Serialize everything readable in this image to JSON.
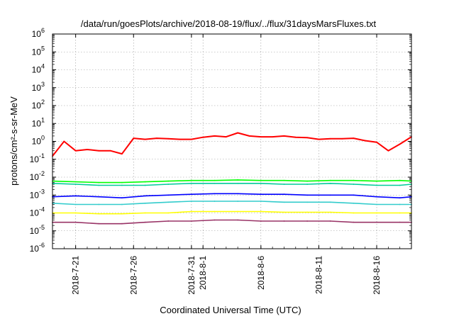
{
  "chart_data": {
    "type": "line",
    "title": "/data/run/goesPlots/archive/2018-08-19/flux/../flux/31daysMarsFluxes.txt",
    "xlabel": "Coordinated Universal Time (UTC)",
    "ylabel": "protons/cm²-s-sr-MeV",
    "yscale": "log",
    "ylim": [
      1e-06,
      1000000.0
    ],
    "xlim": [
      "2018-07-19",
      "2018-08-19"
    ],
    "grid": true,
    "y_ticks": [
      {
        "base": "10",
        "exp": "-6"
      },
      {
        "base": "10",
        "exp": "-5"
      },
      {
        "base": "10",
        "exp": "-4"
      },
      {
        "base": "10",
        "exp": "-3"
      },
      {
        "base": "10",
        "exp": "-2"
      },
      {
        "base": "10",
        "exp": "-1"
      },
      {
        "base": "10",
        "exp": "0"
      },
      {
        "base": "10",
        "exp": "1"
      },
      {
        "base": "10",
        "exp": "2"
      },
      {
        "base": "10",
        "exp": "3"
      },
      {
        "base": "10",
        "exp": "4"
      },
      {
        "base": "10",
        "exp": "5"
      },
      {
        "base": "10",
        "exp": "6"
      }
    ],
    "x_ticks": [
      {
        "date": "2018-07-21",
        "label": "2018-7-21"
      },
      {
        "date": "2018-07-26",
        "label": "2018-7-26"
      },
      {
        "date": "2018-07-31",
        "label": "2018-7-31"
      },
      {
        "date": "2018-08-01",
        "label": "2018-8-1"
      },
      {
        "date": "2018-08-06",
        "label": "2018-8-6"
      },
      {
        "date": "2018-08-11",
        "label": "2018-8-11"
      },
      {
        "date": "2018-08-16",
        "label": "2018-8-16"
      }
    ],
    "series": [
      {
        "color": "#ff0000",
        "x": [
          "2018-07-19",
          "2018-07-20",
          "2018-07-21",
          "2018-07-22",
          "2018-07-23",
          "2018-07-24",
          "2018-07-25",
          "2018-07-26",
          "2018-07-27",
          "2018-07-28",
          "2018-07-29",
          "2018-07-30",
          "2018-07-31",
          "2018-08-01",
          "2018-08-02",
          "2018-08-03",
          "2018-08-04",
          "2018-08-05",
          "2018-08-06",
          "2018-08-07",
          "2018-08-08",
          "2018-08-09",
          "2018-08-10",
          "2018-08-11",
          "2018-08-12",
          "2018-08-13",
          "2018-08-14",
          "2018-08-15",
          "2018-08-16",
          "2018-08-17",
          "2018-08-18",
          "2018-08-19"
        ],
        "values": [
          0.15,
          1.0,
          0.3,
          0.35,
          0.3,
          0.3,
          0.2,
          1.5,
          1.3,
          1.5,
          1.4,
          1.3,
          1.3,
          1.7,
          2.0,
          1.8,
          3.0,
          2.0,
          1.8,
          1.8,
          2.0,
          1.7,
          1.6,
          1.3,
          1.4,
          1.4,
          1.5,
          1.1,
          0.9,
          0.3,
          0.7,
          1.8
        ]
      },
      {
        "color": "#00ff00",
        "x": [
          "2018-07-19",
          "2018-07-21",
          "2018-07-23",
          "2018-07-25",
          "2018-07-27",
          "2018-07-29",
          "2018-07-31",
          "2018-08-02",
          "2018-08-04",
          "2018-08-06",
          "2018-08-08",
          "2018-08-10",
          "2018-08-12",
          "2018-08-14",
          "2018-08-16",
          "2018-08-18",
          "2018-08-19"
        ],
        "values": [
          0.006,
          0.0055,
          0.005,
          0.005,
          0.0055,
          0.006,
          0.0065,
          0.0065,
          0.007,
          0.0065,
          0.0065,
          0.006,
          0.0065,
          0.0065,
          0.006,
          0.0065,
          0.006
        ]
      },
      {
        "color": "#0000ff",
        "x": [
          "2018-07-19",
          "2018-07-21",
          "2018-07-23",
          "2018-07-25",
          "2018-07-27",
          "2018-07-29",
          "2018-07-31",
          "2018-08-02",
          "2018-08-04",
          "2018-08-06",
          "2018-08-08",
          "2018-08-10",
          "2018-08-12",
          "2018-08-14",
          "2018-08-16",
          "2018-08-18",
          "2018-08-19"
        ],
        "values": [
          0.0008,
          0.0009,
          0.0008,
          0.0007,
          0.0009,
          0.001,
          0.0011,
          0.0012,
          0.0012,
          0.0011,
          0.0011,
          0.001,
          0.001,
          0.001,
          0.0008,
          0.0007,
          0.0008
        ]
      },
      {
        "color": "#00cc99",
        "x": [
          "2018-07-19",
          "2018-07-21",
          "2018-07-23",
          "2018-07-25",
          "2018-07-27",
          "2018-07-29",
          "2018-07-31",
          "2018-08-02",
          "2018-08-04",
          "2018-08-06",
          "2018-08-08",
          "2018-08-10",
          "2018-08-12",
          "2018-08-14",
          "2018-08-16",
          "2018-08-18",
          "2018-08-19"
        ],
        "values": [
          0.0045,
          0.004,
          0.0035,
          0.0035,
          0.0035,
          0.004,
          0.0045,
          0.0045,
          0.0045,
          0.0045,
          0.004,
          0.004,
          0.0045,
          0.004,
          0.0035,
          0.0035,
          0.004
        ]
      },
      {
        "color": "#33cccc",
        "x": [
          "2018-07-19",
          "2018-07-21",
          "2018-07-23",
          "2018-07-25",
          "2018-07-27",
          "2018-07-29",
          "2018-07-31",
          "2018-08-02",
          "2018-08-04",
          "2018-08-06",
          "2018-08-08",
          "2018-08-10",
          "2018-08-12",
          "2018-08-14",
          "2018-08-16",
          "2018-08-18",
          "2018-08-19"
        ],
        "values": [
          0.00035,
          0.0003,
          0.0003,
          0.0003,
          0.00035,
          0.0004,
          0.00045,
          0.00045,
          0.00045,
          0.00045,
          0.0004,
          0.0004,
          0.0004,
          0.00035,
          0.0003,
          0.0003,
          0.0003
        ]
      },
      {
        "color": "#ffff00",
        "x": [
          "2018-07-19",
          "2018-07-21",
          "2018-07-23",
          "2018-07-25",
          "2018-07-27",
          "2018-07-29",
          "2018-07-31",
          "2018-08-02",
          "2018-08-04",
          "2018-08-06",
          "2018-08-08",
          "2018-08-10",
          "2018-08-12",
          "2018-08-14",
          "2018-08-16",
          "2018-08-18",
          "2018-08-19"
        ],
        "values": [
          0.0001,
          0.0001,
          9e-05,
          9e-05,
          0.0001,
          0.0001,
          0.00012,
          0.00012,
          0.00012,
          0.00012,
          0.00011,
          0.00011,
          0.00011,
          0.0001,
          0.0001,
          0.0001,
          0.0001
        ]
      },
      {
        "color": "#993366",
        "x": [
          "2018-07-19",
          "2018-07-21",
          "2018-07-23",
          "2018-07-25",
          "2018-07-27",
          "2018-07-29",
          "2018-07-31",
          "2018-08-02",
          "2018-08-04",
          "2018-08-06",
          "2018-08-08",
          "2018-08-10",
          "2018-08-12",
          "2018-08-14",
          "2018-08-16",
          "2018-08-18",
          "2018-08-19"
        ],
        "values": [
          3e-05,
          3e-05,
          2.5e-05,
          2.5e-05,
          3e-05,
          3.5e-05,
          3.5e-05,
          4e-05,
          4e-05,
          3.5e-05,
          3.5e-05,
          3.5e-05,
          3.5e-05,
          3e-05,
          3e-05,
          3e-05,
          3e-05
        ]
      }
    ]
  }
}
